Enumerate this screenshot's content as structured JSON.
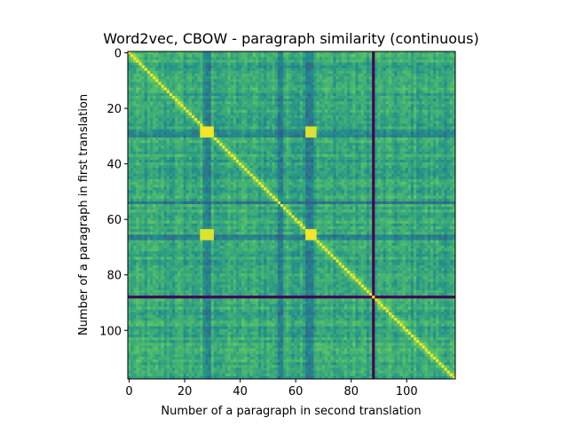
{
  "chart_data": {
    "type": "heatmap",
    "title": "Word2vec, CBOW - paragraph similarity (continuous)",
    "xlabel": "Number of a paragraph in second translation",
    "ylabel": "Number of a paragraph in first translation",
    "n_rows": 118,
    "n_cols": 118,
    "x_range": [
      -0.5,
      117.5
    ],
    "y_range": [
      117.5,
      -0.5
    ],
    "x_ticks": [
      0,
      20,
      40,
      60,
      80,
      100
    ],
    "y_ticks": [
      0,
      20,
      40,
      60,
      80,
      100
    ],
    "colormap": "viridis",
    "colormap_stops": [
      "#440154",
      "#3b528b",
      "#21918c",
      "#5ec962",
      "#fde725"
    ],
    "value_range": [
      0,
      1
    ],
    "background_similarity_range": [
      0.4,
      0.8
    ],
    "diagonal_value": 1.0,
    "dark_lines": [
      {
        "orientation": "vertical",
        "index": 88,
        "value": 0.0
      },
      {
        "orientation": "horizontal",
        "index": 88,
        "value": 0.0
      }
    ],
    "low_similarity_columns": [
      27,
      28,
      29,
      54,
      55,
      64,
      65,
      66
    ],
    "low_similarity_rows": [
      28,
      29,
      30,
      54,
      66,
      67
    ],
    "high_similarity_blocks": [
      {
        "rows": [
          27,
          30
        ],
        "cols": [
          26,
          30
        ],
        "value": 0.98
      },
      {
        "rows": [
          27,
          30
        ],
        "cols": [
          64,
          67
        ],
        "value": 0.95
      },
      {
        "rows": [
          64,
          67
        ],
        "cols": [
          26,
          30
        ],
        "value": 0.95
      },
      {
        "rows": [
          64,
          67
        ],
        "cols": [
          64,
          67
        ],
        "value": 0.98
      }
    ]
  }
}
